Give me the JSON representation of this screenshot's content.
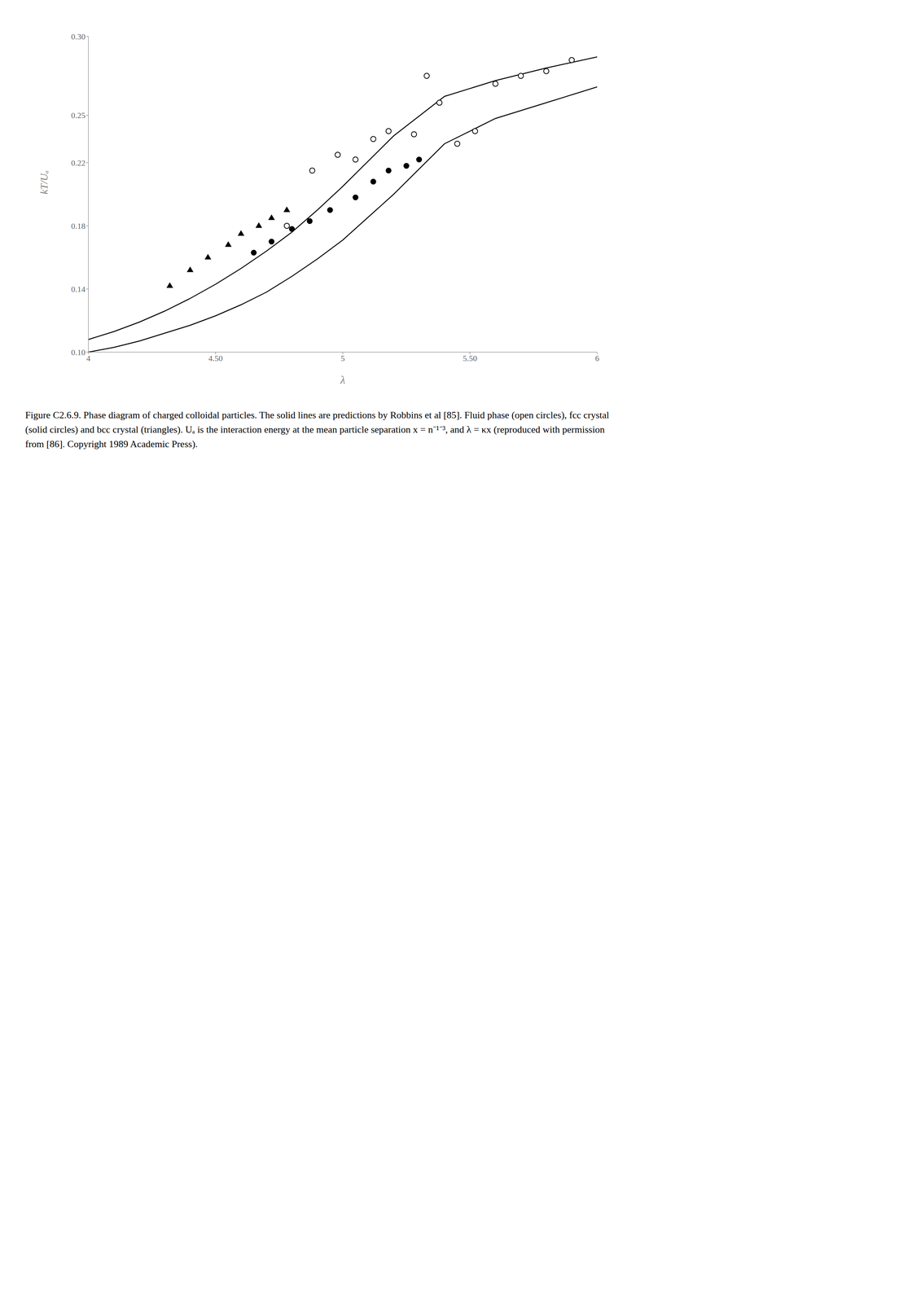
{
  "chart_data": {
    "type": "scatter",
    "title": "Figure C2.6.9. Phase diagram of charged colloidal particles. The solid lines are predictions by Robbins et al [85]. Fluid phase (open circles), fcc crystal (solid circles) and bcc crystal (triangles). Uₐ is the interaction energy at the mean particle separation x = n⁻¹⁻³, and λ = κx (reproduced with permission from [86]. Copyright 1989 Academic Press).",
    "xlabel": "λ",
    "ylabel": "kT/Uₐ",
    "xlim": [
      4.0,
      6.0
    ],
    "ylim": [
      0.1,
      0.3
    ],
    "xticks": [
      4,
      {
        "value": 4.5,
        "label": "4.50"
      },
      5,
      {
        "value": 5.5,
        "label": "5.50"
      },
      6
    ],
    "yticks": [
      {
        "value": 0.1,
        "label": "0.10"
      },
      0.14,
      0.18,
      0.22,
      0.25,
      {
        "value": 0.3,
        "label": "0.30"
      }
    ],
    "grid": false,
    "series": [
      {
        "type": "line",
        "line_style": "solid",
        "color": "#000000",
        "x": [
          4.0,
          4.1,
          4.2,
          4.3,
          4.4,
          4.5,
          4.6,
          4.7,
          4.8,
          4.9,
          5.0,
          5.2,
          5.4,
          5.6,
          5.8,
          6.0
        ],
        "values": [
          0.1,
          0.103,
          0.107,
          0.112,
          0.117,
          0.123,
          0.13,
          0.138,
          0.148,
          0.159,
          0.171,
          0.2,
          0.232,
          0.248,
          0.258,
          0.268
        ]
      },
      {
        "type": "line",
        "line_style": "solid",
        "color": "#000000",
        "x": [
          4.0,
          4.1,
          4.2,
          4.3,
          4.4,
          4.5,
          4.6,
          4.7,
          4.8,
          4.9,
          5.0,
          5.2,
          5.4,
          5.6,
          5.8,
          6.0
        ],
        "values": [
          0.108,
          0.113,
          0.119,
          0.126,
          0.134,
          0.143,
          0.153,
          0.164,
          0.176,
          0.19,
          0.205,
          0.237,
          0.262,
          0.272,
          0.28,
          0.287
        ]
      },
      {
        "type": "scatter",
        "marker": "open_circle",
        "color": "#000000",
        "x": [
          4.78,
          4.88,
          4.98,
          5.05,
          5.12,
          5.18,
          5.28,
          5.33,
          5.38,
          5.45,
          5.52,
          5.6,
          5.7,
          5.8,
          5.9
        ],
        "values": [
          0.18,
          0.215,
          0.225,
          0.222,
          0.235,
          0.24,
          0.238,
          0.275,
          0.258,
          0.232,
          0.24,
          0.27,
          0.275,
          0.278,
          0.285
        ]
      },
      {
        "type": "scatter",
        "marker": "circle",
        "color": "#000000",
        "x": [
          4.65,
          4.72,
          4.8,
          4.87,
          4.95,
          5.05,
          5.12,
          5.18,
          5.25,
          5.3
        ],
        "values": [
          0.163,
          0.17,
          0.178,
          0.183,
          0.19,
          0.198,
          0.208,
          0.215,
          0.218,
          0.222
        ]
      },
      {
        "type": "scatter",
        "marker": "triangle",
        "color": "#000000",
        "x": [
          4.32,
          4.4,
          4.47,
          4.55,
          4.6,
          4.67,
          4.72,
          4.78
        ],
        "values": [
          0.142,
          0.152,
          0.16,
          0.168,
          0.175,
          0.18,
          0.185,
          0.19
        ]
      }
    ]
  }
}
